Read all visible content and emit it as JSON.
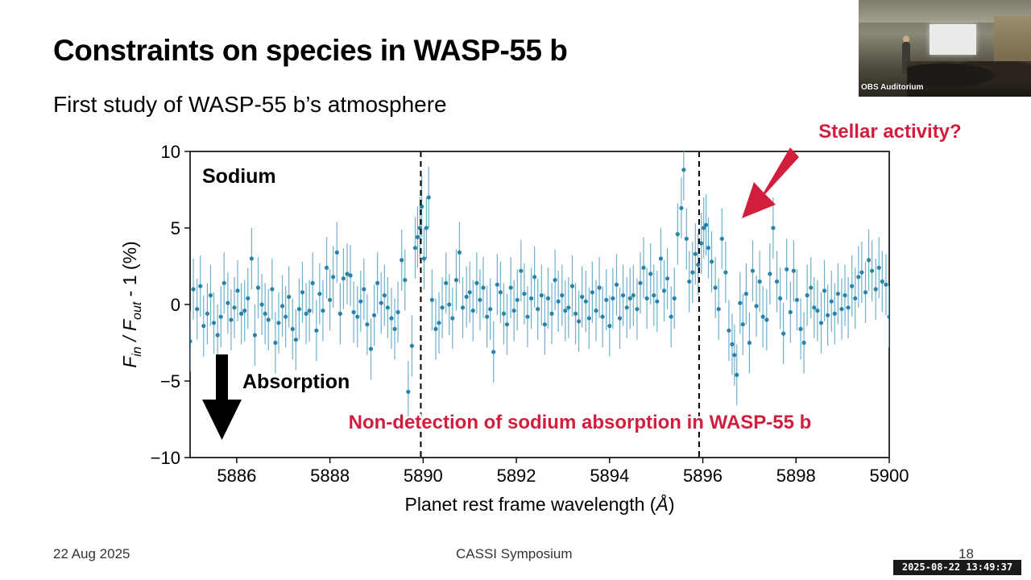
{
  "slide": {
    "title": "Constraints on species in WASP-55 b",
    "subtitle": "First study of WASP-55 b’s atmosphere",
    "footer_date": "22 Aug 2025",
    "footer_event": "CASSI Symposium",
    "page_number": "18",
    "timestamp": "2025-08-22 13:49:37"
  },
  "webcam": {
    "label": "OBS Auditorium"
  },
  "colors": {
    "accent_red": "#d21e3c",
    "series": "#2a82a8",
    "errorbar": "#6fb0cc"
  },
  "chart_data": {
    "type": "scatter",
    "panel_label": "Sodium",
    "xlabel": "Planet rest frame wavelength",
    "xlabel_unit": "Å",
    "ylabel_prefix": "F",
    "ylabel_sub_in": "in",
    "ylabel_sep": " / F",
    "ylabel_sub_out": "out",
    "ylabel_suffix": " - 1 (%)",
    "xlim": [
      5885,
      5900
    ],
    "ylim": [
      -10,
      10
    ],
    "xticks": [
      5886,
      5888,
      5890,
      5892,
      5894,
      5896,
      5898,
      5900
    ],
    "yticks": [
      10,
      5,
      0,
      -5,
      -10
    ],
    "ytick_labels": [
      "10",
      "5",
      "0",
      "−5",
      "−10"
    ],
    "vlines": [
      5889.95,
      5895.92
    ],
    "annotations": {
      "absorption": "Absorption",
      "nondetection": "Non-detection of sodium absorption in WASP-55 b",
      "stellar": "Stellar activity?"
    },
    "series": [
      {
        "points": [
          [
            5885.0,
            -2.4,
            2.0
          ],
          [
            5885.07,
            1.0,
            2.0
          ],
          [
            5885.15,
            -0.3,
            2.0
          ],
          [
            5885.22,
            1.2,
            2.0
          ],
          [
            5885.29,
            -1.4,
            2.0
          ],
          [
            5885.37,
            -0.6,
            2.0
          ],
          [
            5885.44,
            0.6,
            2.0
          ],
          [
            5885.51,
            -1.2,
            2.0
          ],
          [
            5885.59,
            -2.0,
            2.0
          ],
          [
            5885.66,
            -0.8,
            2.0
          ],
          [
            5885.73,
            1.4,
            2.0
          ],
          [
            5885.81,
            0.1,
            2.0
          ],
          [
            5885.88,
            -1.0,
            2.0
          ],
          [
            5885.95,
            -0.2,
            2.0
          ],
          [
            5886.02,
            0.9,
            2.0
          ],
          [
            5886.1,
            -0.6,
            2.0
          ],
          [
            5886.17,
            -0.4,
            2.0
          ],
          [
            5886.24,
            0.4,
            2.0
          ],
          [
            5886.32,
            3.0,
            2.0
          ],
          [
            5886.39,
            -2.0,
            2.0
          ],
          [
            5886.46,
            1.1,
            2.0
          ],
          [
            5886.54,
            0.0,
            2.0
          ],
          [
            5886.61,
            -0.6,
            2.0
          ],
          [
            5886.68,
            -1.0,
            2.0
          ],
          [
            5886.76,
            1.0,
            2.0
          ],
          [
            5886.83,
            -2.5,
            2.0
          ],
          [
            5886.9,
            -1.2,
            2.0
          ],
          [
            5886.98,
            -0.1,
            2.0
          ],
          [
            5887.05,
            -0.8,
            2.0
          ],
          [
            5887.12,
            0.5,
            2.0
          ],
          [
            5887.2,
            -1.6,
            2.0
          ],
          [
            5887.27,
            -2.3,
            2.0
          ],
          [
            5887.34,
            -0.3,
            2.0
          ],
          [
            5887.41,
            0.8,
            2.0
          ],
          [
            5887.49,
            -0.6,
            2.0
          ],
          [
            5887.56,
            -0.4,
            2.0
          ],
          [
            5887.63,
            1.4,
            2.0
          ],
          [
            5887.71,
            -1.7,
            2.0
          ],
          [
            5887.78,
            0.7,
            2.0
          ],
          [
            5887.85,
            -0.4,
            2.0
          ],
          [
            5887.93,
            2.4,
            2.0
          ],
          [
            5888.0,
            0.3,
            2.0
          ],
          [
            5888.07,
            1.8,
            2.0
          ],
          [
            5888.15,
            3.4,
            2.0
          ],
          [
            5888.22,
            -0.6,
            2.0
          ],
          [
            5888.29,
            1.7,
            2.0
          ],
          [
            5888.37,
            2.0,
            2.0
          ],
          [
            5888.44,
            1.9,
            2.0
          ],
          [
            5888.51,
            -0.5,
            2.0
          ],
          [
            5888.59,
            -0.8,
            2.0
          ],
          [
            5888.66,
            0.2,
            2.0
          ],
          [
            5888.73,
            1.0,
            2.0
          ],
          [
            5888.8,
            -1.3,
            2.0
          ],
          [
            5888.88,
            -2.9,
            2.0
          ],
          [
            5888.95,
            -0.7,
            2.0
          ],
          [
            5889.02,
            1.4,
            2.0
          ],
          [
            5889.1,
            0.1,
            2.0
          ],
          [
            5889.17,
            0.6,
            2.0
          ],
          [
            5889.24,
            -0.2,
            2.0
          ],
          [
            5889.32,
            -0.9,
            2.0
          ],
          [
            5889.39,
            -1.6,
            2.0
          ],
          [
            5889.46,
            -0.5,
            2.0
          ],
          [
            5889.54,
            2.9,
            2.0
          ],
          [
            5889.61,
            1.6,
            2.0
          ],
          [
            5889.68,
            -5.7,
            2.0
          ],
          [
            5889.76,
            -2.7,
            2.0
          ],
          [
            5889.83,
            3.7,
            2.0
          ],
          [
            5889.88,
            4.4,
            2.0
          ],
          [
            5889.93,
            5.0,
            2.0
          ],
          [
            5889.97,
            6.4,
            2.0
          ],
          [
            5890.02,
            3.0,
            2.0
          ],
          [
            5890.07,
            5.0,
            2.0
          ],
          [
            5890.12,
            7.0,
            2.0
          ],
          [
            5890.19,
            0.3,
            2.0
          ],
          [
            5890.27,
            -1.6,
            2.0
          ],
          [
            5890.34,
            -1.2,
            2.0
          ],
          [
            5890.41,
            -0.2,
            2.0
          ],
          [
            5890.49,
            1.4,
            2.0
          ],
          [
            5890.56,
            0.0,
            2.0
          ],
          [
            5890.63,
            -0.9,
            2.0
          ],
          [
            5890.71,
            1.6,
            2.0
          ],
          [
            5890.78,
            3.4,
            2.0
          ],
          [
            5890.85,
            -0.2,
            2.0
          ],
          [
            5890.93,
            0.5,
            2.0
          ],
          [
            5891.0,
            0.8,
            2.0
          ],
          [
            5891.07,
            -0.4,
            2.0
          ],
          [
            5891.15,
            1.4,
            2.0
          ],
          [
            5891.22,
            0.3,
            2.0
          ],
          [
            5891.29,
            1.1,
            2.0
          ],
          [
            5891.37,
            -0.8,
            2.0
          ],
          [
            5891.44,
            -0.3,
            2.0
          ],
          [
            5891.51,
            -3.1,
            2.0
          ],
          [
            5891.59,
            1.3,
            2.0
          ],
          [
            5891.66,
            0.8,
            2.0
          ],
          [
            5891.73,
            -0.6,
            2.0
          ],
          [
            5891.8,
            -1.3,
            2.0
          ],
          [
            5891.88,
            1.1,
            2.0
          ],
          [
            5891.95,
            -0.4,
            2.0
          ],
          [
            5892.02,
            0.3,
            2.0
          ],
          [
            5892.1,
            2.2,
            2.0
          ],
          [
            5892.17,
            0.7,
            2.0
          ],
          [
            5892.24,
            -0.8,
            2.0
          ],
          [
            5892.32,
            0.4,
            2.0
          ],
          [
            5892.39,
            1.8,
            2.0
          ],
          [
            5892.46,
            -0.3,
            2.0
          ],
          [
            5892.54,
            0.6,
            2.0
          ],
          [
            5892.61,
            -1.3,
            2.0
          ],
          [
            5892.68,
            0.4,
            2.0
          ],
          [
            5892.76,
            -0.6,
            2.0
          ],
          [
            5892.83,
            1.6,
            2.0
          ],
          [
            5892.9,
            0.2,
            2.0
          ],
          [
            5892.98,
            0.6,
            2.0
          ],
          [
            5893.05,
            -0.4,
            2.0
          ],
          [
            5893.12,
            -0.2,
            2.0
          ],
          [
            5893.2,
            1.2,
            2.0
          ],
          [
            5893.27,
            -0.6,
            2.0
          ],
          [
            5893.34,
            -1.1,
            2.0
          ],
          [
            5893.41,
            0.5,
            2.0
          ],
          [
            5893.49,
            0.2,
            2.0
          ],
          [
            5893.56,
            -0.9,
            2.0
          ],
          [
            5893.63,
            0.8,
            2.0
          ],
          [
            5893.71,
            -0.4,
            2.0
          ],
          [
            5893.78,
            1.1,
            2.0
          ],
          [
            5893.85,
            -0.8,
            2.0
          ],
          [
            5893.93,
            0.3,
            2.0
          ],
          [
            5894.0,
            -1.4,
            2.0
          ],
          [
            5894.07,
            0.4,
            2.0
          ],
          [
            5894.15,
            1.3,
            2.0
          ],
          [
            5894.22,
            -0.9,
            2.0
          ],
          [
            5894.29,
            0.6,
            2.0
          ],
          [
            5894.37,
            -0.2,
            2.0
          ],
          [
            5894.44,
            0.4,
            2.0
          ],
          [
            5894.51,
            0.6,
            2.0
          ],
          [
            5894.59,
            -0.3,
            2.0
          ],
          [
            5894.66,
            1.4,
            2.0
          ],
          [
            5894.73,
            2.4,
            2.0
          ],
          [
            5894.8,
            0.4,
            2.0
          ],
          [
            5894.88,
            2.0,
            2.0
          ],
          [
            5894.95,
            0.6,
            2.0
          ],
          [
            5895.02,
            0.2,
            2.0
          ],
          [
            5895.1,
            3.0,
            2.0
          ],
          [
            5895.17,
            0.9,
            2.0
          ],
          [
            5895.24,
            1.7,
            2.0
          ],
          [
            5895.32,
            -0.8,
            2.0
          ],
          [
            5895.39,
            0.4,
            2.0
          ],
          [
            5895.46,
            4.6,
            2.0
          ],
          [
            5895.54,
            6.3,
            2.0
          ],
          [
            5895.59,
            8.8,
            2.0
          ],
          [
            5895.65,
            4.3,
            2.0
          ],
          [
            5895.71,
            1.5,
            2.0
          ],
          [
            5895.78,
            2.1,
            2.0
          ],
          [
            5895.84,
            3.3,
            2.0
          ],
          [
            5895.9,
            2.6,
            2.0
          ],
          [
            5895.97,
            4.0,
            2.0
          ],
          [
            5896.02,
            5.0,
            2.0
          ],
          [
            5896.07,
            5.2,
            2.0
          ],
          [
            5896.12,
            3.7,
            2.0
          ],
          [
            5896.19,
            2.8,
            2.0
          ],
          [
            5896.27,
            1.1,
            2.0
          ],
          [
            5896.34,
            -0.3,
            2.0
          ],
          [
            5896.41,
            4.3,
            2.0
          ],
          [
            5896.49,
            2.1,
            2.0
          ],
          [
            5896.56,
            -1.7,
            2.0
          ],
          [
            5896.63,
            -2.6,
            2.0
          ],
          [
            5896.68,
            -3.3,
            2.0
          ],
          [
            5896.73,
            -4.6,
            2.0
          ],
          [
            5896.8,
            0.1,
            2.0
          ],
          [
            5896.86,
            -1.3,
            2.0
          ],
          [
            5896.93,
            0.7,
            2.0
          ],
          [
            5897.0,
            -2.5,
            2.0
          ],
          [
            5897.07,
            2.2,
            2.0
          ],
          [
            5897.15,
            -0.1,
            2.0
          ],
          [
            5897.22,
            1.5,
            2.0
          ],
          [
            5897.29,
            -0.8,
            2.0
          ],
          [
            5897.37,
            -1.0,
            2.0
          ],
          [
            5897.44,
            2.0,
            2.0
          ],
          [
            5897.51,
            5.0,
            2.0
          ],
          [
            5897.59,
            1.5,
            2.0
          ],
          [
            5897.66,
            0.4,
            2.0
          ],
          [
            5897.73,
            -1.9,
            2.0
          ],
          [
            5897.8,
            2.3,
            2.0
          ],
          [
            5897.88,
            -0.5,
            2.0
          ],
          [
            5897.95,
            2.2,
            2.0
          ],
          [
            5898.02,
            0.3,
            2.0
          ],
          [
            5898.1,
            -1.6,
            2.0
          ],
          [
            5898.17,
            -2.5,
            2.0
          ],
          [
            5898.24,
            0.6,
            2.0
          ],
          [
            5898.32,
            1.1,
            2.0
          ],
          [
            5898.39,
            -0.2,
            2.0
          ],
          [
            5898.46,
            -0.4,
            2.0
          ],
          [
            5898.54,
            -1.2,
            2.0
          ],
          [
            5898.61,
            0.9,
            2.0
          ],
          [
            5898.68,
            -0.7,
            2.0
          ],
          [
            5898.76,
            0.2,
            2.0
          ],
          [
            5898.83,
            -0.6,
            2.0
          ],
          [
            5898.9,
            0.7,
            2.0
          ],
          [
            5898.98,
            -0.3,
            2.0
          ],
          [
            5899.05,
            0.6,
            2.0
          ],
          [
            5899.12,
            -0.2,
            2.0
          ],
          [
            5899.2,
            1.2,
            2.0
          ],
          [
            5899.27,
            0.4,
            2.0
          ],
          [
            5899.34,
            1.8,
            2.0
          ],
          [
            5899.41,
            2.1,
            2.0
          ],
          [
            5899.49,
            0.8,
            2.0
          ],
          [
            5899.56,
            2.9,
            2.0
          ],
          [
            5899.63,
            2.2,
            2.0
          ],
          [
            5899.71,
            1.0,
            2.0
          ],
          [
            5899.78,
            2.4,
            2.0
          ],
          [
            5899.85,
            1.5,
            2.0
          ],
          [
            5899.93,
            1.3,
            2.0
          ],
          [
            5900.0,
            -0.8,
            2.0
          ]
        ]
      }
    ]
  }
}
